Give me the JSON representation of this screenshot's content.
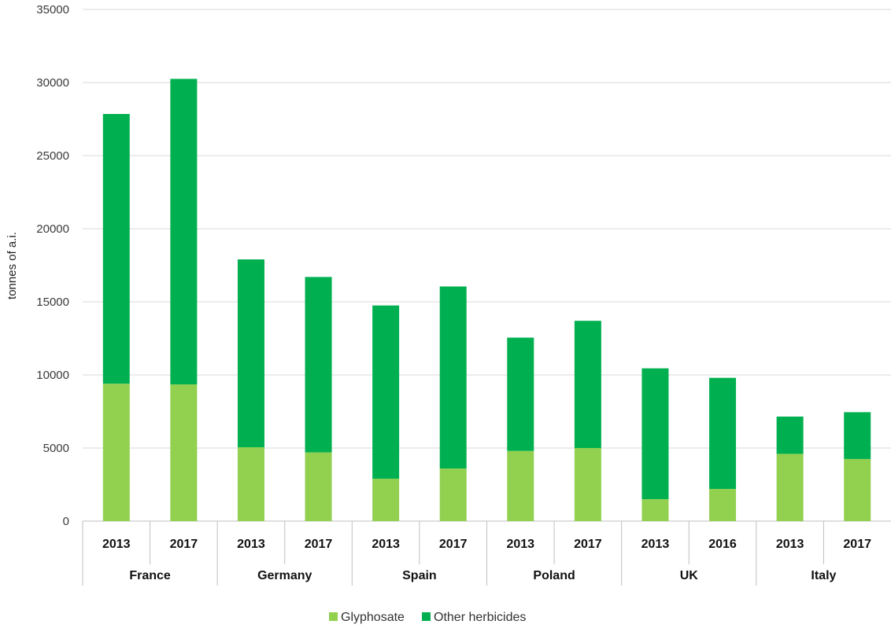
{
  "chart_data": {
    "type": "bar",
    "stacked": true,
    "title": "",
    "xlabel": "",
    "ylabel": "tonnes of a.i.",
    "ylim": [
      0,
      35000
    ],
    "yticks": [
      0,
      5000,
      10000,
      15000,
      20000,
      25000,
      30000,
      35000
    ],
    "grid": true,
    "legend_position": "bottom",
    "groups": [
      {
        "name": "France",
        "categories": [
          "2013",
          "2017"
        ]
      },
      {
        "name": "Germany",
        "categories": [
          "2013",
          "2017"
        ]
      },
      {
        "name": "Spain",
        "categories": [
          "2013",
          "2017"
        ]
      },
      {
        "name": "Poland",
        "categories": [
          "2013",
          "2017"
        ]
      },
      {
        "name": "UK",
        "categories": [
          "2013",
          "2016"
        ]
      },
      {
        "name": "Italy",
        "categories": [
          "2013",
          "2017"
        ]
      }
    ],
    "categories": [
      "France 2013",
      "France 2017",
      "Germany 2013",
      "Germany 2017",
      "Spain 2013",
      "Spain 2017",
      "Poland 2013",
      "Poland 2017",
      "UK 2013",
      "UK 2016",
      "Italy 2013",
      "Italy 2017"
    ],
    "series": [
      {
        "name": "Glyphosate",
        "color": "#92d050",
        "values": [
          9400,
          9350,
          5050,
          4700,
          2900,
          3600,
          4800,
          5000,
          1500,
          2200,
          4600,
          4250
        ]
      },
      {
        "name": "Other herbicides",
        "color": "#00b050",
        "values": [
          18450,
          20900,
          12850,
          12000,
          11850,
          12450,
          7750,
          8700,
          8950,
          7600,
          2550,
          3200
        ]
      }
    ]
  }
}
